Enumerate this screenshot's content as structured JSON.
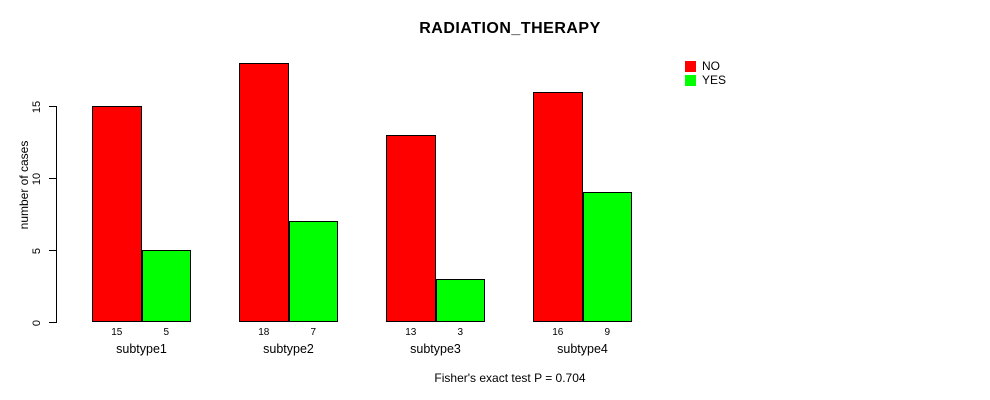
{
  "chart_data": {
    "type": "bar",
    "title": "RADIATION_THERAPY",
    "categories": [
      "subtype1",
      "subtype2",
      "subtype3",
      "subtype4"
    ],
    "series": [
      {
        "name": "NO",
        "color": "#FF0000",
        "values": [
          15,
          18,
          13,
          16
        ]
      },
      {
        "name": "YES",
        "color": "#00FF00",
        "values": [
          5,
          7,
          3,
          9
        ]
      }
    ],
    "xlabel": "",
    "ylabel": "number of cases",
    "yticks": [
      0,
      5,
      10,
      15
    ],
    "ylim": [
      0,
      18.7
    ],
    "grid": false,
    "legend_position": "top-right",
    "bar_value_labels_shown": true,
    "annotation": "Fisher's exact test P = 0.704",
    "axis_color": "#000000",
    "background_color": "#FFFFFF"
  }
}
